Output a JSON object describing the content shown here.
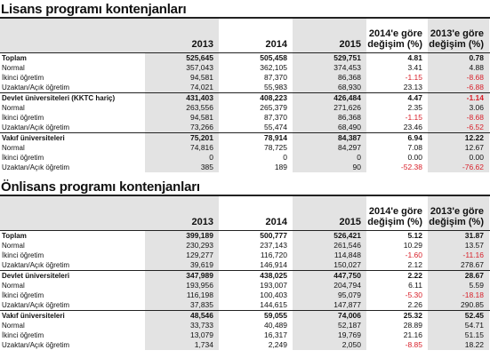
{
  "lisans": {
    "title": "Lisans programı kontenjanları",
    "headers": [
      "2013",
      "2014",
      "2015",
      "2014'e göre değişim (%)",
      "2013'e göre değişim (%)"
    ],
    "rows": [
      {
        "label": "Toplam",
        "bold": true,
        "v": [
          "525,645",
          "505,458",
          "529,751",
          "4.81",
          "0.78"
        ]
      },
      {
        "label": "Normal",
        "v": [
          "357,043",
          "362,105",
          "374,453",
          "3.41",
          "4.88"
        ]
      },
      {
        "label": "İkinci öğretim",
        "v": [
          "94,581",
          "87,370",
          "86,368",
          "-1.15",
          "-8.68"
        ]
      },
      {
        "label": "Uzaktan/Açık öğretim",
        "v": [
          "74,021",
          "55,983",
          "68,930",
          "23.13",
          "-6.88"
        ]
      },
      {
        "label": "Devlet üniversiteleri (KKTC hariç)",
        "bold": true,
        "v": [
          "431,403",
          "408,223",
          "426,484",
          "4.47",
          "-1.14"
        ]
      },
      {
        "label": "Normal",
        "v": [
          "263,556",
          "265,379",
          "271,626",
          "2.35",
          "3.06"
        ]
      },
      {
        "label": "İkinci öğretim",
        "v": [
          "94,581",
          "87,370",
          "86,368",
          "-1.15",
          "-8.68"
        ]
      },
      {
        "label": "Uzaktan/Açık öğretim",
        "v": [
          "73,266",
          "55,474",
          "68,490",
          "23.46",
          "-6.52"
        ]
      },
      {
        "label": "Vakıf üniversiteleri",
        "bold": true,
        "v": [
          "75,201",
          "78,914",
          "84,387",
          "6.94",
          "12.22"
        ]
      },
      {
        "label": "Normal",
        "v": [
          "74,816",
          "78,725",
          "84,297",
          "7.08",
          "12.67"
        ]
      },
      {
        "label": "İkinci öğretim",
        "v": [
          "0",
          "0",
          "0",
          "0.00",
          "0.00"
        ]
      },
      {
        "label": "Uzaktan/Açık öğretim",
        "v": [
          "385",
          "189",
          "90",
          "-52.38",
          "-76.62"
        ]
      }
    ]
  },
  "onlisans": {
    "title": "Önlisans programı kontenjanları",
    "headers": [
      "2013",
      "2014",
      "2015",
      "2014'e göre değişim (%)",
      "2013'e göre değişim (%)"
    ],
    "rows": [
      {
        "label": "Toplam",
        "bold": true,
        "v": [
          "399,189",
          "500,777",
          "526,421",
          "5.12",
          "31.87"
        ]
      },
      {
        "label": "Normal",
        "v": [
          "230,293",
          "237,143",
          "261,546",
          "10.29",
          "13.57"
        ]
      },
      {
        "label": "İkinci öğretim",
        "v": [
          "129,277",
          "116,720",
          "114,848",
          "-1.60",
          "-11.16"
        ]
      },
      {
        "label": "Uzaktan/Açık öğretim",
        "v": [
          "39,619",
          "146,914",
          "150,027",
          "2.12",
          "278.67"
        ]
      },
      {
        "label": "Devlet üniversiteleri",
        "bold": true,
        "v": [
          "347,989",
          "438,025",
          "447,750",
          "2.22",
          "28.67"
        ]
      },
      {
        "label": "Normal",
        "v": [
          "193,956",
          "193,007",
          "204,794",
          "6.11",
          "5.59"
        ]
      },
      {
        "label": "İkinci öğretim",
        "v": [
          "116,198",
          "100,403",
          "95,079",
          "-5.30",
          "-18.18"
        ]
      },
      {
        "label": "Uzaktan/Açık öğretim",
        "v": [
          "37,835",
          "144,615",
          "147,877",
          "2.26",
          "290.85"
        ]
      },
      {
        "label": "Vakıf üniversiteleri",
        "bold": true,
        "v": [
          "48,546",
          "59,055",
          "74,006",
          "25.32",
          "52.45"
        ]
      },
      {
        "label": "Normal",
        "v": [
          "33,733",
          "40,489",
          "52,187",
          "28.89",
          "54.71"
        ]
      },
      {
        "label": "İkinci öğretim",
        "v": [
          "13,079",
          "16,317",
          "19,769",
          "21.16",
          "51.15"
        ]
      },
      {
        "label": "Uzaktan/Açık öğretim",
        "v": [
          "1,734",
          "2,249",
          "2,050",
          "-8.85",
          "18.22"
        ]
      }
    ]
  },
  "colors": {
    "negative": "#d8202a",
    "shade": "#e3e3e3"
  }
}
